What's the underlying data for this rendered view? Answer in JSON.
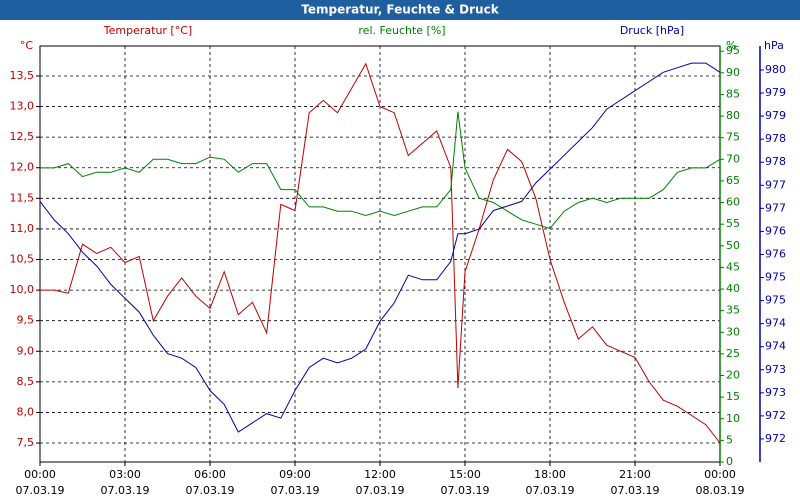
{
  "chart_data": {
    "type": "line",
    "title": "Temperatur, Feuchte & Druck",
    "ylabel": "°C",
    "y2label": "%",
    "y3label": "hPa",
    "x": [
      0,
      0.5,
      1,
      1.5,
      2,
      2.5,
      3,
      3.5,
      4,
      4.5,
      5,
      5.5,
      6,
      6.5,
      7,
      7.5,
      8,
      8.5,
      9,
      9.5,
      10,
      10.5,
      11,
      11.5,
      12,
      12.5,
      13,
      13.5,
      14,
      14.5,
      14.75,
      15,
      15.5,
      16,
      16.5,
      17,
      17.5,
      18,
      18.5,
      19,
      19.5,
      20,
      20.5,
      21,
      21.5,
      22,
      22.5,
      23,
      23.5,
      24
    ],
    "xlim": [
      0,
      24
    ],
    "xticks": [
      {
        "value": 0,
        "label": "00:00",
        "date": "07.03.19"
      },
      {
        "value": 3,
        "label": "03:00",
        "date": "07.03.19"
      },
      {
        "value": 6,
        "label": "06:00",
        "date": "07.03.19"
      },
      {
        "value": 9,
        "label": "09:00",
        "date": "07.03.19"
      },
      {
        "value": 12,
        "label": "12:00",
        "date": "07.03.19"
      },
      {
        "value": 15,
        "label": "15:00",
        "date": "07.03.19"
      },
      {
        "value": 18,
        "label": "18:00",
        "date": "07.03.19"
      },
      {
        "value": 21,
        "label": "21:00",
        "date": "07.03.19"
      },
      {
        "value": 24,
        "label": "00:00",
        "date": "08.03.19"
      }
    ],
    "ylim": [
      7.19,
      13.99
    ],
    "yticks": [
      {
        "value": 7.5,
        "label": "7,5"
      },
      {
        "value": 8,
        "label": "8,0"
      },
      {
        "value": 8.5,
        "label": "8,5"
      },
      {
        "value": 9,
        "label": "9,0"
      },
      {
        "value": 9.5,
        "label": "9,5"
      },
      {
        "value": 10,
        "label": "10,0"
      },
      {
        "value": 10.5,
        "label": "10,5"
      },
      {
        "value": 11,
        "label": "11,0"
      },
      {
        "value": 11.5,
        "label": "11,5"
      },
      {
        "value": 12,
        "label": "12,0"
      },
      {
        "value": 12.5,
        "label": "12,5"
      },
      {
        "value": 13,
        "label": "13,0"
      },
      {
        "value": 13.5,
        "label": "13,5"
      }
    ],
    "y2lim": [
      0,
      96.2
    ],
    "y2ticks": [
      0,
      5,
      10,
      15,
      20,
      25,
      30,
      35,
      40,
      45,
      50,
      55,
      60,
      65,
      70,
      75,
      80,
      85,
      90,
      95
    ],
    "y3lim": [
      971.25,
      980.27
    ],
    "y3ticks": [
      {
        "value": 971.75,
        "label": "972"
      },
      {
        "value": 972.25,
        "label": "972"
      },
      {
        "value": 972.75,
        "label": "973"
      },
      {
        "value": 973.25,
        "label": "973"
      },
      {
        "value": 973.75,
        "label": "974"
      },
      {
        "value": 974.25,
        "label": "974"
      },
      {
        "value": 974.75,
        "label": "975"
      },
      {
        "value": 975.25,
        "label": "975"
      },
      {
        "value": 975.75,
        "label": "976"
      },
      {
        "value": 976.25,
        "label": "976"
      },
      {
        "value": 976.75,
        "label": "977"
      },
      {
        "value": 977.25,
        "label": "977"
      },
      {
        "value": 977.75,
        "label": "978"
      },
      {
        "value": 978.25,
        "label": "978"
      },
      {
        "value": 978.75,
        "label": "979"
      },
      {
        "value": 979.25,
        "label": "979"
      },
      {
        "value": 979.75,
        "label": "980"
      }
    ],
    "grid": true,
    "series": [
      {
        "name": "Temperatur [°C]",
        "color": "#c00000",
        "axis": "y",
        "values": [
          10.0,
          10.0,
          9.95,
          10.75,
          10.6,
          10.7,
          10.45,
          10.55,
          9.5,
          9.9,
          10.2,
          9.9,
          9.7,
          10.3,
          9.6,
          9.8,
          9.3,
          11.4,
          11.3,
          12.9,
          13.1,
          12.9,
          13.3,
          13.7,
          13.0,
          12.9,
          12.2,
          12.4,
          12.6,
          12.0,
          8.4,
          10.3,
          11.0,
          11.8,
          12.3,
          12.1,
          11.5,
          10.5,
          9.8,
          9.2,
          9.4,
          9.1,
          9.0,
          8.9,
          8.5,
          8.2,
          8.1,
          7.95,
          7.8,
          7.5
        ]
      },
      {
        "name": "rel. Feuchte [%]",
        "color": "#008000",
        "axis": "y2",
        "values": [
          68,
          68,
          69,
          66,
          67,
          67,
          68,
          67,
          70,
          70,
          69,
          69,
          70.5,
          70,
          67,
          69,
          69,
          63,
          63,
          59,
          59,
          58,
          58,
          57,
          58,
          57,
          58,
          59,
          59,
          63,
          81,
          68,
          61,
          60,
          58,
          56,
          55,
          54,
          58,
          60,
          61,
          60,
          61,
          61,
          61,
          63,
          67,
          68,
          68,
          70
        ]
      },
      {
        "name": "Druck [hPa]",
        "color": "#0000b0",
        "axis": "y3",
        "values": [
          976.9,
          976.5,
          976.2,
          975.8,
          975.5,
          975.1,
          974.8,
          974.5,
          974.0,
          973.6,
          973.5,
          973.3,
          972.8,
          972.5,
          971.9,
          972.1,
          972.3,
          972.2,
          972.8,
          973.3,
          973.5,
          973.4,
          973.5,
          973.7,
          974.3,
          974.7,
          975.3,
          975.2,
          975.2,
          975.6,
          976.2,
          976.2,
          976.3,
          976.7,
          976.8,
          976.9,
          977.3,
          977.6,
          977.9,
          978.2,
          978.5,
          978.9,
          979.1,
          979.3,
          979.5,
          979.7,
          979.8,
          979.9,
          979.9,
          979.7
        ]
      }
    ]
  }
}
